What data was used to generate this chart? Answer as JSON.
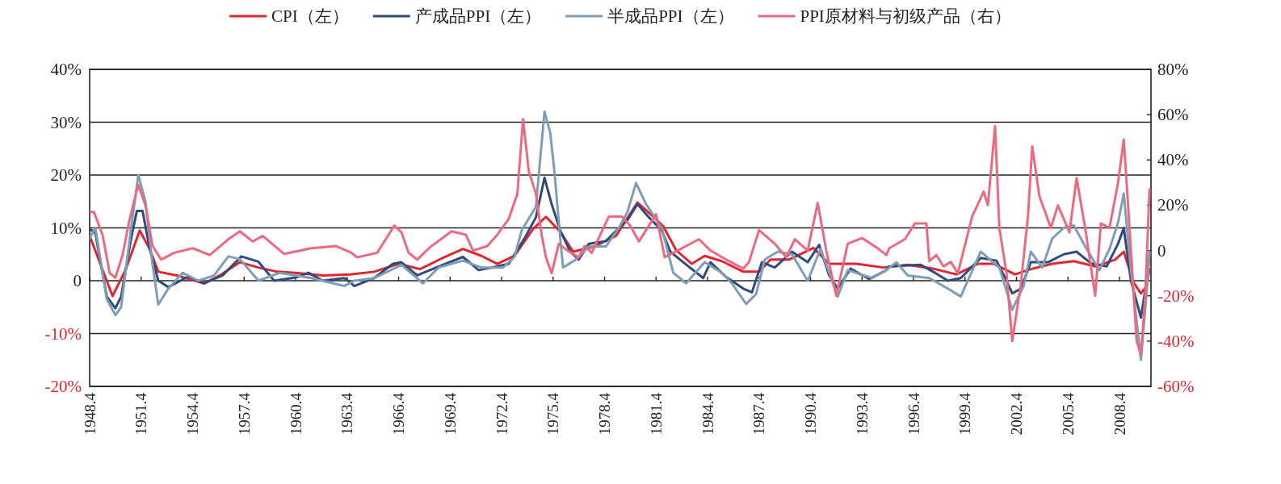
{
  "chart_data": {
    "type": "line",
    "legend": "top",
    "grid": "y",
    "xlim": [
      "1948-04",
      "2010-02"
    ],
    "xticks": [
      {
        "value": "1948-04",
        "label": "1948.4"
      },
      {
        "value": "1951-04",
        "label": "1951.4"
      },
      {
        "value": "1954-04",
        "label": "1954.4"
      },
      {
        "value": "1957-04",
        "label": "1957.4"
      },
      {
        "value": "1960-04",
        "label": "1960.4"
      },
      {
        "value": "1963-04",
        "label": "1963.4"
      },
      {
        "value": "1966-04",
        "label": "1966.4"
      },
      {
        "value": "1969-04",
        "label": "1969.4"
      },
      {
        "value": "1972-04",
        "label": "1972.4"
      },
      {
        "value": "1975-04",
        "label": "1975.4"
      },
      {
        "value": "1978-04",
        "label": "1978.4"
      },
      {
        "value": "1981-04",
        "label": "1981.4"
      },
      {
        "value": "1984-04",
        "label": "1984.4"
      },
      {
        "value": "1987-04",
        "label": "1987.4"
      },
      {
        "value": "1990-04",
        "label": "1990.4"
      },
      {
        "value": "1993-04",
        "label": "1993.4"
      },
      {
        "value": "1996-04",
        "label": "1996.4"
      },
      {
        "value": "1999-04",
        "label": "1999.4"
      },
      {
        "value": "2002-04",
        "label": "2002.4"
      },
      {
        "value": "2005-04",
        "label": "2005.4"
      },
      {
        "value": "2008-04",
        "label": "2008.4"
      }
    ],
    "ylim": [
      -20,
      40
    ],
    "yticks": [
      {
        "value": -20,
        "label": "-20%"
      },
      {
        "value": -10,
        "label": "-10%"
      },
      0,
      {
        "value": 10,
        "label": "10%"
      },
      {
        "value": 20,
        "label": "20%"
      },
      {
        "value": 30,
        "label": "30%"
      },
      {
        "value": 40,
        "label": "40%"
      }
    ],
    "y2lim": [
      -60,
      80
    ],
    "y2ticks": [
      {
        "value": -60,
        "label": "-60%"
      },
      {
        "value": -40,
        "label": "-40%"
      },
      {
        "value": -20,
        "label": "-20%"
      },
      0,
      {
        "value": 20,
        "label": "20%"
      },
      {
        "value": 40,
        "label": "40%"
      },
      {
        "value": 60,
        "label": "60%"
      },
      {
        "value": 80,
        "label": "80%"
      }
    ],
    "series": [
      {
        "name": "CPI（左）",
        "color": "#e0262f",
        "x": [
          "1948-04",
          "1949-08",
          "1950-05",
          "1951-03",
          "1951-10",
          "1952-04",
          "1953-05",
          "1954-12",
          "1955-11",
          "1957-01",
          "1958-02",
          "1959-03",
          "1960-04",
          "1961-11",
          "1963-06",
          "1964-11",
          "1966-04",
          "1967-07",
          "1968-10",
          "1970-01",
          "1971-02",
          "1972-01",
          "1973-01",
          "1974-02",
          "1974-11",
          "1975-09",
          "1976-06",
          "1977-09",
          "1978-12",
          "1980-03",
          "1981-03",
          "1981-09",
          "1982-06",
          "1983-05",
          "1984-02",
          "1985-02",
          "1986-05",
          "1987-04",
          "1987-12",
          "1989-01",
          "1990-06",
          "1991-05",
          "1992-12",
          "1994-07",
          "1995-12",
          "1997-07",
          "1998-10",
          "2000-01",
          "2000-12",
          "2002-03",
          "2003-02",
          "2004-05",
          "2005-08",
          "2006-11",
          "2008-01",
          "2008-07",
          "2009-02",
          "2009-07",
          "2009-11",
          "2010-01"
        ],
        "values": [
          8.5,
          -2.9,
          2,
          9.5,
          6,
          1.7,
          1,
          -0.5,
          1,
          3.5,
          2.5,
          1.7,
          1.5,
          1,
          1.2,
          1.7,
          3.2,
          2.2,
          4.2,
          6,
          4.7,
          3.2,
          4.7,
          9.8,
          12.1,
          9.3,
          5.5,
          6.5,
          8.5,
          14.8,
          11.9,
          10.3,
          5.8,
          3.2,
          4.7,
          3.7,
          1.7,
          1.7,
          4,
          4,
          6.2,
          3.2,
          3.2,
          2.5,
          3,
          2.2,
          1.2,
          3.2,
          3.2,
          1.2,
          2.2,
          3.2,
          3.7,
          2.7,
          4,
          5.5,
          -0.4,
          -2.4,
          -1,
          2.2
        ]
      },
      {
        "name": "产成品PPI（左）",
        "color": "#2f4b7c",
        "x": [
          "1948-04",
          "1948-08",
          "1949-04",
          "1949-10",
          "1950-02",
          "1950-09",
          "1951-01",
          "1951-05",
          "1951-10",
          "1952-04",
          "1952-11",
          "1954-01",
          "1954-12",
          "1956-01",
          "1957-02",
          "1958-02",
          "1959-01",
          "1960-04",
          "1961-01",
          "1961-11",
          "1963-02",
          "1963-07",
          "1963-09",
          "1964-11",
          "1965-12",
          "1966-06",
          "1967-05",
          "1968-08",
          "1970-01",
          "1970-12",
          "1972-01",
          "1972-09",
          "1973-08",
          "1974-04",
          "1974-10",
          "1975-03",
          "1975-09",
          "1976-04",
          "1976-10",
          "1977-05",
          "1978-05",
          "1979-02",
          "1979-08",
          "1980-03",
          "1980-11",
          "1981-08",
          "1982-02",
          "1982-11",
          "1984-01",
          "1984-06",
          "1985-05",
          "1986-05",
          "1986-11",
          "1987-06",
          "1988-03",
          "1989-03",
          "1990-02",
          "1990-10",
          "1991-05",
          "1991-11",
          "1992-08",
          "1993-09",
          "1994-09",
          "1994-11",
          "1996-09",
          "1997-07",
          "1998-04",
          "1999-01",
          "2000-03",
          "2001-02",
          "2001-09",
          "2002-01",
          "2002-07",
          "2003-02",
          "2004-02",
          "2005-01",
          "2005-10",
          "2006-08",
          "2007-07",
          "2008-03",
          "2008-07",
          "2008-12",
          "2009-07",
          "2009-11",
          "2010-01"
        ],
        "values": [
          9.8,
          9,
          -3,
          -5.2,
          -3,
          8,
          13.2,
          13.2,
          6,
          0,
          -1.2,
          0.8,
          -0.5,
          1,
          4.6,
          3.6,
          0,
          0.6,
          1.5,
          0,
          0.5,
          -0.5,
          -1,
          0.5,
          3.2,
          3.5,
          1,
          2.7,
          4.5,
          2,
          2.7,
          3.2,
          8,
          12,
          19.5,
          14.5,
          9.5,
          5.5,
          4,
          7,
          7.5,
          10,
          11.5,
          14.5,
          12,
          9.5,
          5.5,
          3.5,
          0.5,
          3.5,
          0.7,
          -1.5,
          -2.2,
          3.5,
          2.5,
          5.5,
          3.5,
          6.8,
          1,
          -1.5,
          2.3,
          0.3,
          2,
          2.7,
          3,
          1.5,
          0,
          0.5,
          4.3,
          3.8,
          0,
          -2.4,
          -1.5,
          3.5,
          3.5,
          5,
          5.5,
          3.3,
          2.7,
          7,
          10,
          0,
          -7,
          0,
          5
        ]
      },
      {
        "name": "半成品PPI（左）",
        "color": "#7f9db5",
        "x": [
          "1948-04",
          "1948-08",
          "1949-04",
          "1949-10",
          "1950-02",
          "1950-09",
          "1951-02",
          "1951-07",
          "1951-12",
          "1952-04",
          "1952-11",
          "1953-09",
          "1954-08",
          "1955-07",
          "1956-05",
          "1957-01",
          "1958-02",
          "1959-05",
          "1961-03",
          "1963-02",
          "1963-09",
          "1964-11",
          "1966-06",
          "1967-09",
          "1968-08",
          "1970-01",
          "1971-02",
          "1972-05",
          "1973-01",
          "1973-06",
          "1974-04",
          "1974-10",
          "1975-02",
          "1975-05",
          "1975-09",
          "1975-11",
          "1976-08",
          "1977-05",
          "1978-05",
          "1979-02",
          "1979-08",
          "1980-02",
          "1980-09",
          "1981-08",
          "1982-04",
          "1983-01",
          "1984-02",
          "1985-02",
          "1985-09",
          "1986-07",
          "1987-02",
          "1987-08",
          "1988-05",
          "1989-03",
          "1990-02",
          "1990-11",
          "1991-07",
          "1991-11",
          "1992-06",
          "1993-11",
          "1994-09",
          "1995-04",
          "1995-12",
          "1997-03",
          "1998-04",
          "1999-01",
          "2000-03",
          "2001-04",
          "2002-01",
          "2002-09",
          "2003-02",
          "2003-10",
          "2004-05",
          "2005-01",
          "2005-08",
          "2006-04",
          "2007-02",
          "2007-09",
          "2008-03",
          "2008-07",
          "2008-12",
          "2009-07",
          "2009-11",
          "2010-01"
        ],
        "values": [
          8,
          10,
          -3.5,
          -6.5,
          -5,
          10,
          20,
          15,
          3,
          -4.5,
          -1.5,
          1.5,
          0,
          1,
          4.6,
          4.1,
          0,
          1.5,
          0.5,
          -1,
          0,
          0.5,
          3,
          -0.5,
          2.5,
          3.8,
          2.5,
          2.5,
          4.5,
          9.5,
          14,
          32,
          28,
          20.5,
          8,
          2.5,
          4,
          6.5,
          6.5,
          10,
          13,
          18.5,
          14.5,
          10,
          1.5,
          -0.5,
          3.5,
          1.5,
          -0.5,
          -4.4,
          -2.5,
          4,
          5.5,
          5,
          0,
          6,
          0,
          -3,
          2,
          0.5,
          2,
          3.5,
          1,
          0.5,
          -1.5,
          -3,
          5.5,
          2.5,
          -5.5,
          -1,
          5.5,
          2.5,
          8,
          10,
          10.5,
          6.5,
          2,
          6,
          11,
          16.5,
          2,
          -15,
          -2,
          5.5
        ]
      },
      {
        "name": "PPI原材料与初级产品（右）",
        "color": "#eb6a80",
        "axis": "y2",
        "x": [
          "1948-04",
          "1948-07",
          "1949-01",
          "1949-06",
          "1949-10",
          "1950-03",
          "1950-08",
          "1951-02",
          "1951-07",
          "1951-12",
          "1952-06",
          "1953-03",
          "1954-04",
          "1955-04",
          "1956-05",
          "1957-01",
          "1957-10",
          "1958-05",
          "1959-08",
          "1961-03",
          "1962-08",
          "1963-07",
          "1963-11",
          "1965-01",
          "1966-01",
          "1966-06",
          "1966-11",
          "1967-05",
          "1968-02",
          "1969-05",
          "1970-03",
          "1970-08",
          "1971-06",
          "1972-01",
          "1972-09",
          "1973-03",
          "1973-07",
          "1973-11",
          "1974-04",
          "1974-08",
          "1974-11",
          "1975-03",
          "1975-08",
          "1976-02",
          "1976-10",
          "1977-02",
          "1977-07",
          "1978-07",
          "1979-04",
          "1979-10",
          "1980-04",
          "1981-04",
          "1981-10",
          "1982-07",
          "1983-10",
          "1984-06",
          "1985-05",
          "1986-05",
          "1986-09",
          "1987-04",
          "1988-03",
          "1988-11",
          "1989-05",
          "1990-02",
          "1990-09",
          "1991-03",
          "1991-10",
          "1992-06",
          "1993-04",
          "1994-03",
          "1994-09",
          "1994-11",
          "1995-10",
          "1996-05",
          "1997-01",
          "1997-03",
          "1997-08",
          "1998-01",
          "1998-06",
          "1998-11",
          "1999-09",
          "2000-05",
          "2000-08",
          "2001-01",
          "2001-04",
          "2001-09",
          "2002-01",
          "2002-07",
          "2002-12",
          "2003-03",
          "2003-08",
          "2004-04",
          "2004-09",
          "2005-05",
          "2005-10",
          "2006-04",
          "2006-11",
          "2007-03",
          "2007-09",
          "2008-03",
          "2008-07",
          "2008-10",
          "2009-04",
          "2009-07",
          "2009-10",
          "2010-01"
        ],
        "values": [
          17,
          17,
          7,
          -10,
          -12,
          -2,
          14,
          29,
          20,
          2,
          -4,
          -1,
          1,
          -2,
          5,
          8.5,
          4,
          6.5,
          -1.5,
          1,
          2,
          -1,
          -3,
          -1,
          11,
          8,
          -1,
          -4,
          1.5,
          8.5,
          7,
          0,
          2,
          7,
          14,
          25,
          58,
          35,
          25,
          7,
          -3,
          -10,
          3,
          0,
          -3,
          2,
          -1,
          15,
          15,
          11,
          4,
          16,
          -3,
          0,
          5,
          0,
          -4,
          -8,
          -5,
          9,
          3,
          -3,
          5,
          0,
          21,
          0,
          -20,
          3,
          5.5,
          1,
          -2,
          1,
          5,
          12,
          12,
          -4.7,
          -2,
          -7,
          -5,
          -10,
          15,
          26,
          20,
          55,
          10,
          -10,
          -40,
          -15,
          15,
          46,
          24,
          10,
          20,
          8,
          32,
          10,
          -20,
          12,
          10,
          30,
          49,
          20,
          -40,
          -46,
          -20,
          27
        ]
      }
    ]
  }
}
